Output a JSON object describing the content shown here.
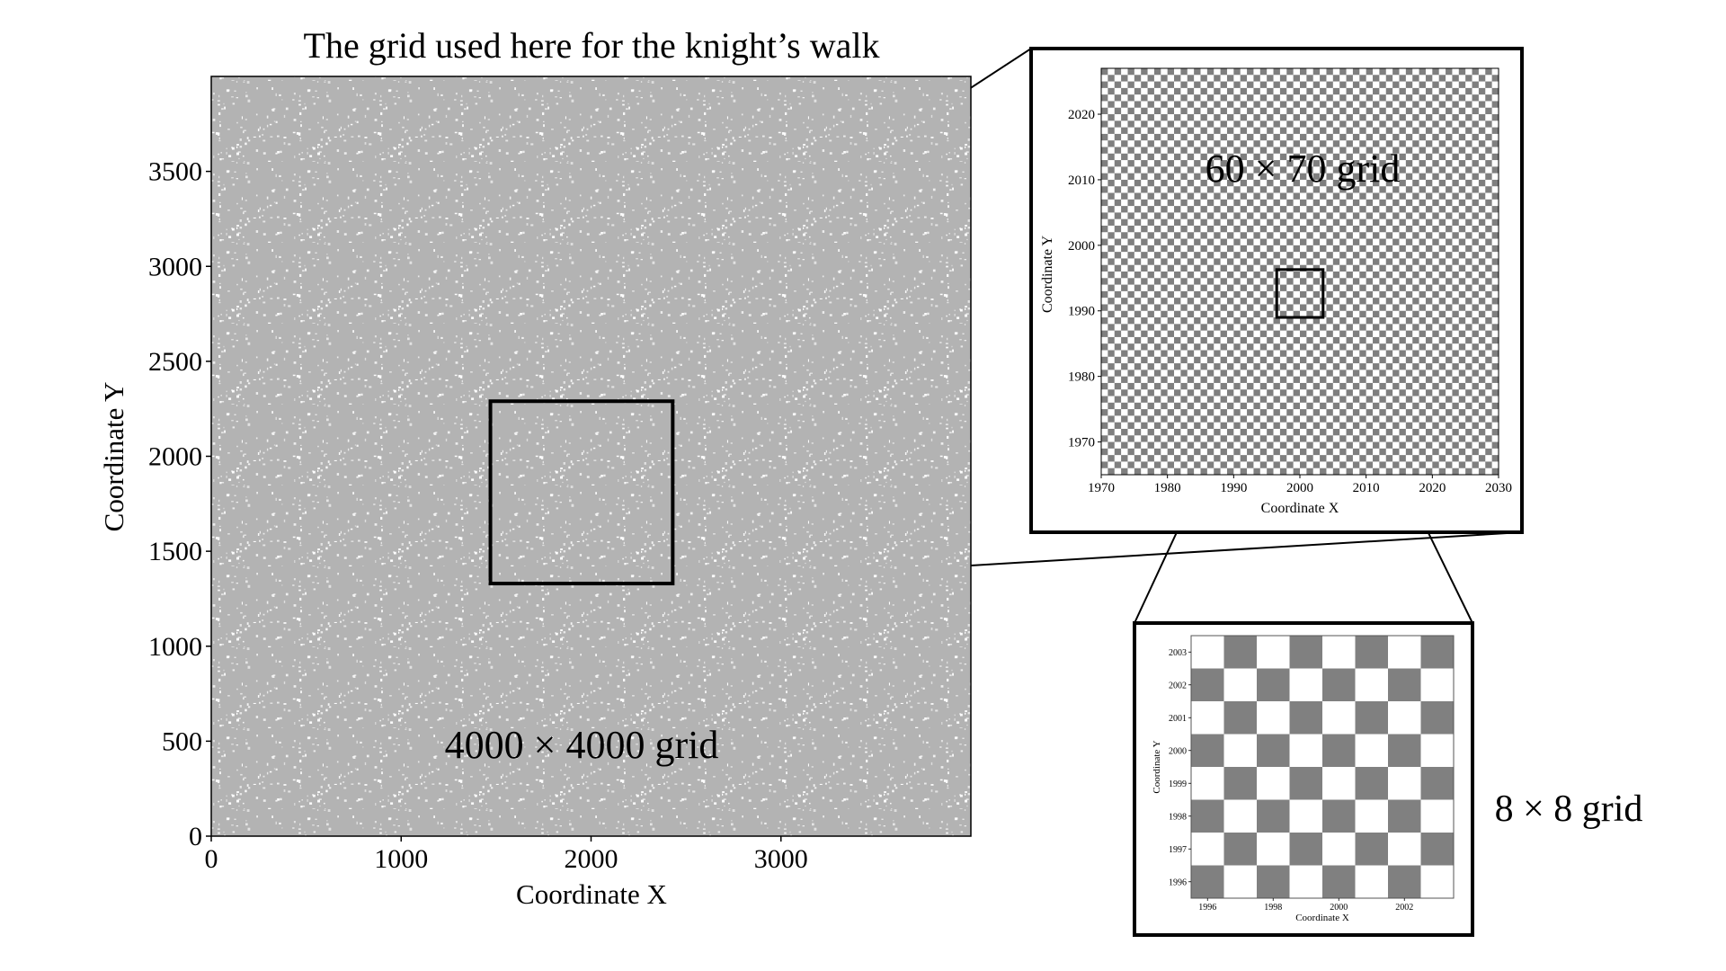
{
  "chart_data": [
    {
      "type": "heatmap",
      "title": "The grid used here for the knight’s walk",
      "xlabel": "Coordinate X",
      "ylabel": "Coordinate Y",
      "xlim": [
        0,
        4000
      ],
      "ylim": [
        0,
        4000
      ],
      "xticks": [
        "0",
        "1000",
        "2000",
        "3000"
      ],
      "xtick_values": [
        0,
        1000,
        2000,
        3000
      ],
      "yticks": [
        "0",
        "500",
        "1000",
        "1500",
        "2000",
        "2500",
        "3000",
        "3500"
      ],
      "ytick_values": [
        0,
        500,
        1000,
        1500,
        2000,
        2500,
        3000,
        3500
      ],
      "annotation": "4000 × 4000 grid",
      "zoom_region": {
        "x": [
          1470,
          2430
        ],
        "y": [
          1330,
          2290
        ]
      },
      "colors": {
        "fill": "#b3b3b3",
        "speckle": "#ffffff"
      }
    },
    {
      "type": "heatmap",
      "pattern": "checkerboard",
      "xlabel": "Coordinate X",
      "ylabel": "Coordinate Y",
      "xlim": [
        1970,
        2030
      ],
      "ylim": [
        1965,
        2027
      ],
      "xticks": [
        "1970",
        "1980",
        "1990",
        "2000",
        "2010",
        "2020",
        "2030"
      ],
      "xtick_values": [
        1970,
        1980,
        1990,
        2000,
        2010,
        2020,
        2030
      ],
      "yticks": [
        "1970",
        "1980",
        "1990",
        "2000",
        "2010",
        "2020"
      ],
      "ytick_values": [
        1970,
        1980,
        1990,
        2000,
        2010,
        2020
      ],
      "annotation": "60 × 70 grid",
      "zoom_region": {
        "x": [
          1996.5,
          2003.5
        ],
        "y": [
          1989,
          1996.3
        ]
      },
      "colors": {
        "dark": "#7f7f7f",
        "light": "#ffffff"
      }
    },
    {
      "type": "heatmap",
      "pattern": "checkerboard",
      "xlabel": "Coordinate X",
      "ylabel": "Coordinate Y",
      "xlim": [
        1995.5,
        2003.5
      ],
      "ylim": [
        1995.5,
        2003.5
      ],
      "xticks": [
        "1996",
        "1998",
        "2000",
        "2002"
      ],
      "xtick_values": [
        1996,
        1998,
        2000,
        2002
      ],
      "yticks": [
        "1996",
        "1997",
        "1998",
        "1999",
        "2000",
        "2001",
        "2002",
        "2003"
      ],
      "ytick_values": [
        1996,
        1997,
        1998,
        1999,
        2000,
        2001,
        2002,
        2003
      ],
      "annotation": "8 × 8 grid",
      "colors": {
        "dark": "#808080",
        "light": "#ffffff"
      }
    }
  ]
}
